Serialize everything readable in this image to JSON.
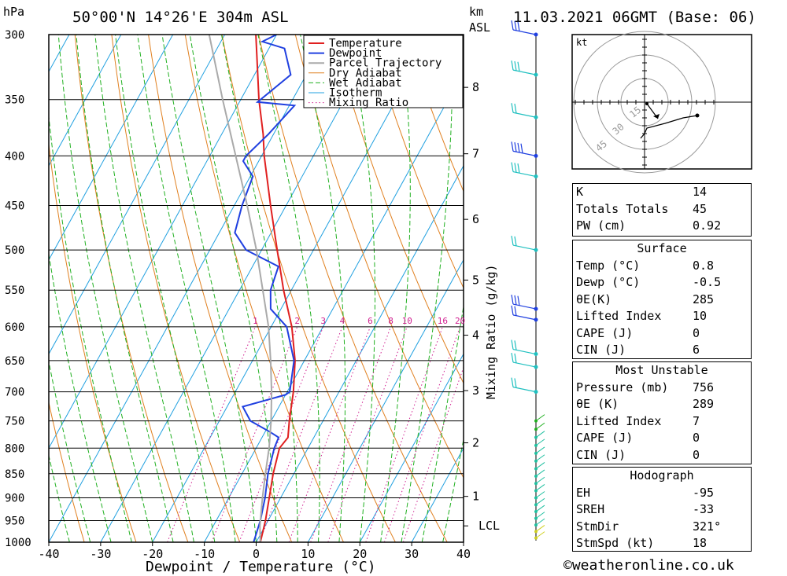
{
  "header": {
    "location": "50°00'N  14°26'E  304m  ASL",
    "datetime": "11.03.2021  06GMT  (Base: 06)",
    "pressure_unit": "hPa",
    "height_unit_top": "km",
    "height_unit_bottom": "ASL"
  },
  "chart_data": {
    "type": "line",
    "title": "",
    "xlabel": "Dewpoint / Temperature (°C)",
    "ylabel": "hPa",
    "right_axis_label": "Mixing Ratio (g/kg)",
    "x_ticks": [
      -40,
      -30,
      -20,
      -10,
      0,
      10,
      20,
      30,
      40
    ],
    "pressure_ticks": [
      300,
      350,
      400,
      450,
      500,
      550,
      600,
      650,
      700,
      750,
      800,
      850,
      900,
      950,
      1000
    ],
    "km_ticks": [
      {
        "label": "8",
        "p": 340
      },
      {
        "label": "7",
        "p": 398
      },
      {
        "label": "6",
        "p": 465
      },
      {
        "label": "5",
        "p": 537
      },
      {
        "label": "4",
        "p": 612
      },
      {
        "label": "3",
        "p": 698
      },
      {
        "label": "2",
        "p": 790
      },
      {
        "label": "1",
        "p": 897
      },
      {
        "label": "LCL",
        "p": 962
      }
    ],
    "mixing_ratio_labels": [
      "1",
      "2",
      "3",
      "4",
      "6",
      "8",
      "10",
      "16",
      "20",
      "25"
    ],
    "legend": [
      "Temperature",
      "Dewpoint",
      "Parcel Trajectory",
      "Dry Adiabat",
      "Wet Adiabat",
      "Isotherm",
      "Mixing Ratio"
    ],
    "legend_position": "top-right",
    "series": [
      {
        "name": "Temperature",
        "color": "#e02020",
        "points": [
          [
            1000,
            0.8
          ],
          [
            950,
            -0.5
          ],
          [
            900,
            -2.2
          ],
          [
            850,
            -4.0
          ],
          [
            800,
            -5.5
          ],
          [
            780,
            -5.0
          ],
          [
            750,
            -6.5
          ],
          [
            700,
            -8.8
          ],
          [
            650,
            -11.8
          ],
          [
            600,
            -16.0
          ],
          [
            550,
            -21.5
          ],
          [
            500,
            -27.0
          ],
          [
            450,
            -33.0
          ],
          [
            400,
            -39.5
          ],
          [
            380,
            -42.0
          ],
          [
            350,
            -46.5
          ],
          [
            300,
            -54.0
          ]
        ]
      },
      {
        "name": "Dewpoint",
        "color": "#2040e0",
        "points": [
          [
            1000,
            -0.5
          ],
          [
            950,
            -1.5
          ],
          [
            900,
            -3.0
          ],
          [
            850,
            -5.0
          ],
          [
            800,
            -6.5
          ],
          [
            780,
            -6.8
          ],
          [
            770,
            -9.0
          ],
          [
            750,
            -14.0
          ],
          [
            725,
            -17.0
          ],
          [
            705,
            -10.0
          ],
          [
            700,
            -9.5
          ],
          [
            650,
            -12.0
          ],
          [
            600,
            -17.0
          ],
          [
            575,
            -22.0
          ],
          [
            550,
            -24.0
          ],
          [
            520,
            -25.0
          ],
          [
            500,
            -33.0
          ],
          [
            480,
            -37.0
          ],
          [
            450,
            -38.5
          ],
          [
            420,
            -39.5
          ],
          [
            405,
            -43.0
          ],
          [
            400,
            -43.0
          ],
          [
            380,
            -41.0
          ],
          [
            355,
            -39.0
          ],
          [
            352,
            -46.5
          ],
          [
            330,
            -43.0
          ],
          [
            310,
            -47.0
          ],
          [
            305,
            -52.0
          ],
          [
            300,
            -50.0
          ]
        ]
      },
      {
        "name": "Parcel Trajectory",
        "color": "#aaaaaa",
        "points": [
          [
            1000,
            0.8
          ],
          [
            962,
            -1.0
          ],
          [
            900,
            -3.5
          ],
          [
            850,
            -5.5
          ],
          [
            800,
            -7.5
          ],
          [
            750,
            -10.0
          ],
          [
            700,
            -13.0
          ],
          [
            650,
            -16.5
          ],
          [
            600,
            -20.5
          ],
          [
            550,
            -25.5
          ],
          [
            500,
            -31.0
          ],
          [
            450,
            -37.5
          ],
          [
            400,
            -45.0
          ],
          [
            350,
            -53.5
          ],
          [
            300,
            -63.0
          ]
        ]
      }
    ],
    "legend_colors": {
      "Temperature": "#e02020",
      "Dewpoint": "#2040e0",
      "Parcel Trajectory": "#aaaaaa",
      "Dry Adiabat": "#e08020",
      "Wet Adiabat": "#20b020",
      "Isotherm": "#20a0e0",
      "Mixing Ratio": "#d02090"
    }
  },
  "hodograph": {
    "unit": "kt",
    "ring_labels": [
      "15",
      "30",
      "45"
    ]
  },
  "indices": {
    "basic": [
      {
        "label": "K",
        "value": "14"
      },
      {
        "label": "Totals Totals",
        "value": "45"
      },
      {
        "label": "PW (cm)",
        "value": "0.92"
      }
    ],
    "surface_title": "Surface",
    "surface": [
      {
        "label": "Temp (°C)",
        "value": "0.8"
      },
      {
        "label": "Dewp (°C)",
        "value": "-0.5"
      },
      {
        "label": "θE(K)",
        "value": "285"
      },
      {
        "label": "Lifted Index",
        "value": "10"
      },
      {
        "label": "CAPE (J)",
        "value": "0"
      },
      {
        "label": "CIN (J)",
        "value": "6"
      }
    ],
    "mu_title": "Most Unstable",
    "mu": [
      {
        "label": "Pressure (mb)",
        "value": "756"
      },
      {
        "label": "θE (K)",
        "value": "289"
      },
      {
        "label": "Lifted Index",
        "value": "7"
      },
      {
        "label": "CAPE (J)",
        "value": "0"
      },
      {
        "label": "CIN (J)",
        "value": "0"
      }
    ],
    "hodo_title": "Hodograph",
    "hodo": [
      {
        "label": "EH",
        "value": "-95"
      },
      {
        "label": "SREH",
        "value": "-33"
      },
      {
        "label": "StmDir",
        "value": "321°"
      },
      {
        "label": "StmSpd (kt)",
        "value": "18"
      }
    ]
  },
  "footer": {
    "copyright": "©weatheronline.co.uk"
  }
}
